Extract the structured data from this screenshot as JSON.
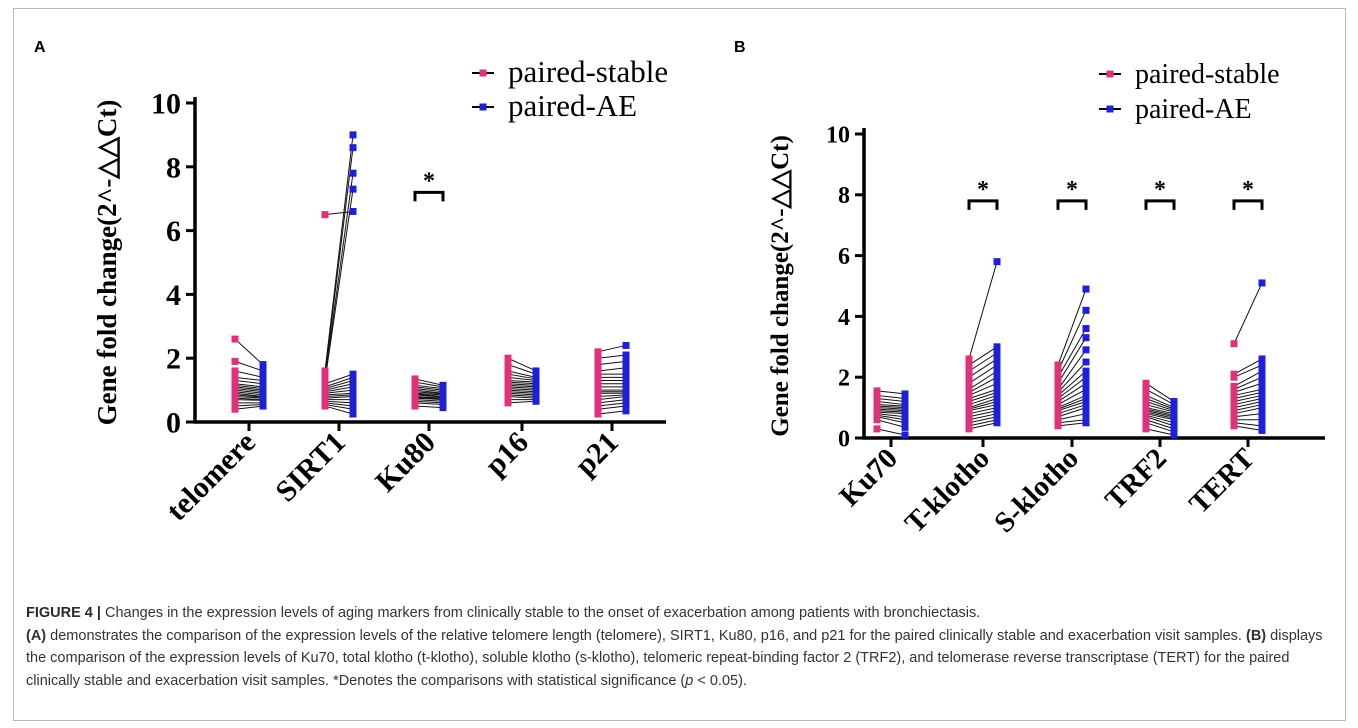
{
  "chart_data": [
    {
      "panel": "A",
      "type": "scatter",
      "connected_pairs": true,
      "ylabel": "Gene fold change(2^-△△Ct)",
      "ylim": [
        0,
        10
      ],
      "yticks": [
        "0",
        "2",
        "4",
        "6",
        "8",
        "10"
      ],
      "categories": [
        "telomere",
        "SIRT1",
        "Ku80",
        "p16",
        "p21"
      ],
      "legend": [
        "paired-stable",
        "paired-AE"
      ],
      "legend_position": "top-right",
      "significance_marks": [
        "Ku80"
      ],
      "significance_symbol": "*",
      "colors": {
        "stable": "#e0317b",
        "ae": "#1f1fd8"
      },
      "series": [
        {
          "name": "paired-stable",
          "values": [
            [
              2.6,
              1.9,
              1.6,
              1.4,
              1.3,
              1.2,
              1.15,
              1.1,
              1.05,
              1.0,
              0.95,
              0.9,
              0.85,
              0.8,
              0.75,
              0.7,
              0.6,
              0.5,
              0.4
            ],
            [
              6.5,
              1.6,
              1.5,
              1.4,
              1.3,
              1.2,
              1.1,
              1.05,
              1.0,
              0.95,
              0.9,
              0.85,
              0.8,
              0.75,
              0.7,
              0.65,
              0.6,
              0.55,
              0.5
            ],
            [
              1.35,
              1.25,
              1.15,
              1.1,
              1.05,
              1.0,
              0.95,
              0.9,
              0.88,
              0.85,
              0.8,
              0.78,
              0.75,
              0.7,
              0.65,
              0.6,
              0.5
            ],
            [
              2.0,
              1.8,
              1.6,
              1.5,
              1.4,
              1.3,
              1.25,
              1.2,
              1.15,
              1.1,
              1.05,
              1.0,
              0.95,
              0.9,
              0.85,
              0.8,
              0.7,
              0.6
            ],
            [
              2.2,
              2.0,
              1.8,
              1.6,
              1.5,
              1.4,
              1.3,
              1.2,
              1.1,
              1.0,
              0.95,
              0.9,
              0.8,
              0.7,
              0.6,
              0.5,
              0.4,
              0.25
            ]
          ]
        },
        {
          "name": "paired-AE",
          "values": [
            [
              1.8,
              1.6,
              1.4,
              1.3,
              1.2,
              1.1,
              1.05,
              1.0,
              0.95,
              0.9,
              0.85,
              0.8,
              0.78,
              0.75,
              0.7,
              0.68,
              0.6,
              0.55,
              0.5
            ],
            [
              6.6,
              9.0,
              8.6,
              7.8,
              7.3,
              1.5,
              1.4,
              1.3,
              1.2,
              1.1,
              1.0,
              0.9,
              0.85,
              0.8,
              0.7,
              0.6,
              0.5,
              0.4,
              0.25
            ],
            [
              1.15,
              1.1,
              1.05,
              1.0,
              0.95,
              0.9,
              0.88,
              0.85,
              0.8,
              0.78,
              0.75,
              0.72,
              0.7,
              0.65,
              0.6,
              0.55,
              0.45
            ],
            [
              1.6,
              1.5,
              1.4,
              1.35,
              1.3,
              1.25,
              1.2,
              1.15,
              1.1,
              1.05,
              1.0,
              0.95,
              0.9,
              0.85,
              0.8,
              0.75,
              0.7,
              0.65
            ],
            [
              2.4,
              2.1,
              1.9,
              1.7,
              1.5,
              1.4,
              1.3,
              1.2,
              1.1,
              1.0,
              0.95,
              0.9,
              0.85,
              0.8,
              0.7,
              0.6,
              0.5,
              0.35
            ]
          ]
        }
      ]
    },
    {
      "panel": "B",
      "type": "scatter",
      "connected_pairs": true,
      "ylabel": "Gene fold change(2^-△△Ct)",
      "ylim": [
        0,
        10
      ],
      "yticks": [
        "0",
        "2",
        "4",
        "6",
        "8",
        "10"
      ],
      "categories": [
        "Ku70",
        "T-klotho",
        "S-klotho",
        "TRF2",
        "TERT"
      ],
      "legend": [
        "paired-stable",
        "paired-AE"
      ],
      "legend_position": "top-right",
      "significance_marks": [
        "T-klotho",
        "S-klotho",
        "TRF2",
        "TERT"
      ],
      "significance_symbol": "*",
      "colors": {
        "stable": "#e0317b",
        "ae": "#1f1fd8"
      },
      "series": [
        {
          "name": "paired-stable",
          "values": [
            [
              1.55,
              1.4,
              1.3,
              1.2,
              1.1,
              1.05,
              1.0,
              0.95,
              0.9,
              0.85,
              0.8,
              0.75,
              0.7,
              0.6,
              0.3
            ],
            [
              2.6,
              2.4,
              2.2,
              2.0,
              1.8,
              1.6,
              1.5,
              1.4,
              1.3,
              1.2,
              1.1,
              1.0,
              0.95,
              0.9,
              0.8,
              0.7,
              0.6,
              0.5,
              0.4,
              0.3
            ],
            [
              2.4,
              2.2,
              2.0,
              1.8,
              1.6,
              1.5,
              1.4,
              1.3,
              1.2,
              1.1,
              1.0,
              0.95,
              0.9,
              0.8,
              0.7,
              0.6,
              0.5,
              0.4
            ],
            [
              1.8,
              1.6,
              1.4,
              1.3,
              1.2,
              1.1,
              1.0,
              0.95,
              0.9,
              0.85,
              0.8,
              0.75,
              0.7,
              0.6,
              0.5,
              0.3
            ],
            [
              3.1,
              2.1,
              2.0,
              1.7,
              1.6,
              1.5,
              1.4,
              1.3,
              1.2,
              1.1,
              1.0,
              0.9,
              0.8,
              0.7,
              0.6,
              0.5,
              0.4
            ]
          ]
        },
        {
          "name": "paired-AE",
          "values": [
            [
              1.45,
              1.3,
              1.2,
              1.1,
              1.05,
              1.0,
              0.95,
              0.9,
              0.85,
              0.8,
              0.7,
              0.6,
              0.5,
              0.35,
              0.1
            ],
            [
              5.8,
              3.0,
              2.8,
              2.6,
              2.4,
              2.2,
              2.0,
              1.8,
              1.6,
              1.5,
              1.4,
              1.3,
              1.2,
              1.1,
              1.0,
              0.9,
              0.8,
              0.7,
              0.6,
              0.5
            ],
            [
              4.9,
              4.2,
              3.6,
              3.3,
              2.9,
              2.5,
              2.2,
              2.0,
              1.8,
              1.6,
              1.4,
              1.3,
              1.2,
              1.1,
              1.0,
              0.8,
              0.6,
              0.5
            ],
            [
              1.2,
              1.1,
              1.0,
              0.95,
              0.9,
              0.85,
              0.8,
              0.75,
              0.7,
              0.65,
              0.6,
              0.5,
              0.4,
              0.3,
              0.2,
              0.1
            ],
            [
              5.1,
              2.6,
              2.4,
              2.2,
              2.0,
              1.8,
              1.6,
              1.5,
              1.4,
              1.3,
              1.2,
              1.1,
              1.0,
              0.8,
              0.6,
              0.4,
              0.25
            ]
          ]
        }
      ]
    }
  ],
  "caption": {
    "title_lead": "FIGURE 4 |",
    "title_text": " Changes in the expression levels of aging markers from clinically stable to the onset of exacerbation among patients with bronchiectasis.",
    "a_label": "(A)",
    "a_text": " demonstrates the comparison of the expression levels of the relative telomere length (telomere), SIRT1, Ku80, p16, and p21 for the paired clinically stable and exacerbation visit samples. ",
    "b_label": "(B)",
    "b_text": " displays the comparison of the expression levels of Ku70, total klotho (t-klotho), soluble klotho (s-klotho), telomeric repeat-binding factor 2 (TRF2), and telomerase reverse transcriptase (TERT) for the paired clinically stable and exacerbation visit samples. *Denotes the comparisons with statistical significance (",
    "p_var": "p",
    "p_rest": " < 0.05)."
  }
}
